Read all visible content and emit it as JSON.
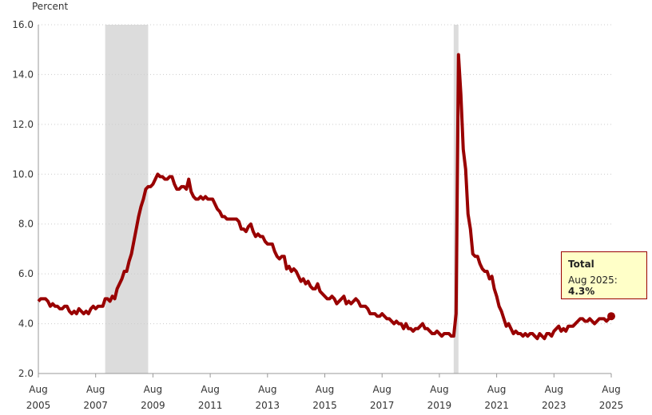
{
  "chart_data": {
    "type": "line",
    "y_label": "Percent",
    "x": [
      "Aug 2005",
      "Sep 2005",
      "Oct 2005",
      "Nov 2005",
      "Dec 2005",
      "Jan 2006",
      "Feb 2006",
      "Mar 2006",
      "Apr 2006",
      "May 2006",
      "Jun 2006",
      "Jul 2006",
      "Aug 2006",
      "Sep 2006",
      "Oct 2006",
      "Nov 2006",
      "Dec 2006",
      "Jan 2007",
      "Feb 2007",
      "Mar 2007",
      "Apr 2007",
      "May 2007",
      "Jun 2007",
      "Jul 2007",
      "Aug 2007",
      "Sep 2007",
      "Oct 2007",
      "Nov 2007",
      "Dec 2007",
      "Jan 2008",
      "Feb 2008",
      "Mar 2008",
      "Apr 2008",
      "May 2008",
      "Jun 2008",
      "Jul 2008",
      "Aug 2008",
      "Sep 2008",
      "Oct 2008",
      "Nov 2008",
      "Dec 2008",
      "Jan 2009",
      "Feb 2009",
      "Mar 2009",
      "Apr 2009",
      "May 2009",
      "Jun 2009",
      "Jul 2009",
      "Aug 2009",
      "Sep 2009",
      "Oct 2009",
      "Nov 2009",
      "Dec 2009",
      "Jan 2010",
      "Feb 2010",
      "Mar 2010",
      "Apr 2010",
      "May 2010",
      "Jun 2010",
      "Jul 2010",
      "Aug 2010",
      "Sep 2010",
      "Oct 2010",
      "Nov 2010",
      "Dec 2010",
      "Jan 2011",
      "Feb 2011",
      "Mar 2011",
      "Apr 2011",
      "May 2011",
      "Jun 2011",
      "Jul 2011",
      "Aug 2011",
      "Sep 2011",
      "Oct 2011",
      "Nov 2011",
      "Dec 2011",
      "Jan 2012",
      "Feb 2012",
      "Mar 2012",
      "Apr 2012",
      "May 2012",
      "Jun 2012",
      "Jul 2012",
      "Aug 2012",
      "Sep 2012",
      "Oct 2012",
      "Nov 2012",
      "Dec 2012",
      "Jan 2013",
      "Feb 2013",
      "Mar 2013",
      "Apr 2013",
      "May 2013",
      "Jun 2013",
      "Jul 2013",
      "Aug 2013",
      "Sep 2013",
      "Oct 2013",
      "Nov 2013",
      "Dec 2013",
      "Jan 2014",
      "Feb 2014",
      "Mar 2014",
      "Apr 2014",
      "May 2014",
      "Jun 2014",
      "Jul 2014",
      "Aug 2014",
      "Sep 2014",
      "Oct 2014",
      "Nov 2014",
      "Dec 2014",
      "Jan 2015",
      "Feb 2015",
      "Mar 2015",
      "Apr 2015",
      "May 2015",
      "Jun 2015",
      "Jul 2015",
      "Aug 2015",
      "Sep 2015",
      "Oct 2015",
      "Nov 2015",
      "Dec 2015",
      "Jan 2016",
      "Feb 2016",
      "Mar 2016",
      "Apr 2016",
      "May 2016",
      "Jun 2016",
      "Jul 2016",
      "Aug 2016",
      "Sep 2016",
      "Oct 2016",
      "Nov 2016",
      "Dec 2016",
      "Jan 2017",
      "Feb 2017",
      "Mar 2017",
      "Apr 2017",
      "May 2017",
      "Jun 2017",
      "Jul 2017",
      "Aug 2017",
      "Sep 2017",
      "Oct 2017",
      "Nov 2017",
      "Dec 2017",
      "Jan 2018",
      "Feb 2018",
      "Mar 2018",
      "Apr 2018",
      "May 2018",
      "Jun 2018",
      "Jul 2018",
      "Aug 2018",
      "Sep 2018",
      "Oct 2018",
      "Nov 2018",
      "Dec 2018",
      "Jan 2019",
      "Feb 2019",
      "Mar 2019",
      "Apr 2019",
      "May 2019",
      "Jun 2019",
      "Jul 2019",
      "Aug 2019",
      "Sep 2019",
      "Oct 2019",
      "Nov 2019",
      "Dec 2019",
      "Jan 2020",
      "Feb 2020",
      "Mar 2020",
      "Apr 2020",
      "May 2020",
      "Jun 2020",
      "Jul 2020",
      "Aug 2020",
      "Sep 2020",
      "Oct 2020",
      "Nov 2020",
      "Dec 2020",
      "Jan 2021",
      "Feb 2021",
      "Mar 2021",
      "Apr 2021",
      "May 2021",
      "Jun 2021",
      "Jul 2021",
      "Aug 2021",
      "Sep 2021",
      "Oct 2021",
      "Nov 2021",
      "Dec 2021",
      "Jan 2022",
      "Feb 2022",
      "Mar 2022",
      "Apr 2022",
      "May 2022",
      "Jun 2022",
      "Jul 2022",
      "Aug 2022",
      "Sep 2022",
      "Oct 2022",
      "Nov 2022",
      "Dec 2022",
      "Jan 2023",
      "Feb 2023",
      "Mar 2023",
      "Apr 2023",
      "May 2023",
      "Jun 2023",
      "Jul 2023",
      "Aug 2023",
      "Sep 2023",
      "Oct 2023",
      "Nov 2023",
      "Dec 2023",
      "Jan 2024",
      "Feb 2024",
      "Mar 2024",
      "Apr 2024",
      "May 2024",
      "Jun 2024",
      "Jul 2024",
      "Aug 2024",
      "Sep 2024",
      "Oct 2024",
      "Nov 2024",
      "Dec 2024",
      "Jan 2025",
      "Feb 2025",
      "Mar 2025",
      "Apr 2025",
      "May 2025",
      "Jun 2025",
      "Jul 2025",
      "Aug 2025"
    ],
    "series": [
      {
        "name": "Total",
        "color": "#990000",
        "values": [
          4.9,
          5.0,
          5.0,
          5.0,
          4.9,
          4.7,
          4.8,
          4.7,
          4.7,
          4.6,
          4.6,
          4.7,
          4.7,
          4.5,
          4.4,
          4.5,
          4.4,
          4.6,
          4.5,
          4.4,
          4.5,
          4.4,
          4.6,
          4.7,
          4.6,
          4.7,
          4.7,
          4.7,
          5.0,
          5.0,
          4.9,
          5.1,
          5.0,
          5.4,
          5.6,
          5.8,
          6.1,
          6.1,
          6.5,
          6.8,
          7.3,
          7.8,
          8.3,
          8.7,
          9.0,
          9.4,
          9.5,
          9.5,
          9.6,
          9.8,
          10.0,
          9.9,
          9.9,
          9.8,
          9.8,
          9.9,
          9.9,
          9.6,
          9.4,
          9.4,
          9.5,
          9.5,
          9.4,
          9.8,
          9.3,
          9.1,
          9.0,
          9.0,
          9.1,
          9.0,
          9.1,
          9.0,
          9.0,
          9.0,
          8.8,
          8.6,
          8.5,
          8.3,
          8.3,
          8.2,
          8.2,
          8.2,
          8.2,
          8.2,
          8.1,
          7.8,
          7.8,
          7.7,
          7.9,
          8.0,
          7.7,
          7.5,
          7.6,
          7.5,
          7.5,
          7.3,
          7.2,
          7.2,
          7.2,
          6.9,
          6.7,
          6.6,
          6.7,
          6.7,
          6.2,
          6.3,
          6.1,
          6.2,
          6.1,
          5.9,
          5.7,
          5.8,
          5.6,
          5.7,
          5.5,
          5.4,
          5.4,
          5.6,
          5.3,
          5.2,
          5.1,
          5.0,
          5.0,
          5.1,
          5.0,
          4.8,
          4.9,
          5.0,
          5.1,
          4.8,
          4.9,
          4.8,
          4.9,
          5.0,
          4.9,
          4.7,
          4.7,
          4.7,
          4.6,
          4.4,
          4.4,
          4.4,
          4.3,
          4.3,
          4.4,
          4.3,
          4.2,
          4.2,
          4.1,
          4.0,
          4.1,
          4.0,
          4.0,
          3.8,
          4.0,
          3.8,
          3.8,
          3.7,
          3.8,
          3.8,
          3.9,
          4.0,
          3.8,
          3.8,
          3.7,
          3.6,
          3.6,
          3.7,
          3.6,
          3.5,
          3.6,
          3.6,
          3.6,
          3.5,
          3.5,
          4.4,
          14.8,
          13.2,
          11.0,
          10.2,
          8.4,
          7.8,
          6.8,
          6.7,
          6.7,
          6.4,
          6.2,
          6.1,
          6.1,
          5.8,
          5.9,
          5.4,
          5.1,
          4.7,
          4.5,
          4.2,
          3.9,
          4.0,
          3.8,
          3.6,
          3.7,
          3.6,
          3.6,
          3.5,
          3.6,
          3.5,
          3.6,
          3.6,
          3.5,
          3.4,
          3.6,
          3.5,
          3.4,
          3.6,
          3.6,
          3.5,
          3.7,
          3.8,
          3.9,
          3.7,
          3.8,
          3.7,
          3.9,
          3.9,
          3.9,
          4.0,
          4.1,
          4.2,
          4.2,
          4.1,
          4.1,
          4.2,
          4.1,
          4.0,
          4.1,
          4.2,
          4.2,
          4.2,
          4.1,
          4.2,
          4.3
        ]
      }
    ],
    "xticks": [
      "Aug 2005",
      "Aug 2007",
      "Aug 2009",
      "Aug 2011",
      "Aug 2013",
      "Aug 2015",
      "Aug 2017",
      "Aug 2019",
      "Aug 2021",
      "Aug 2023",
      "Aug 2025"
    ],
    "ylim": [
      2,
      16
    ],
    "yticks": [
      {
        "value": 2,
        "label": "2.0"
      },
      {
        "value": 4,
        "label": "4.0"
      },
      {
        "value": 6,
        "label": "6.0"
      },
      {
        "value": 8,
        "label": "8.0"
      },
      {
        "value": 10,
        "label": "10.0"
      },
      {
        "value": 12,
        "label": "12.0"
      },
      {
        "value": 14,
        "label": "14.0"
      },
      {
        "value": 16,
        "label": "16.0"
      }
    ],
    "grid": true,
    "recessions": [
      [
        "Dec 2007",
        "Jun 2009"
      ],
      [
        "Feb 2020",
        "Apr 2020"
      ]
    ],
    "recession_color": "#dcdcdc",
    "tooltip": {
      "date": "Aug 2025:",
      "value": "4.3%"
    }
  }
}
